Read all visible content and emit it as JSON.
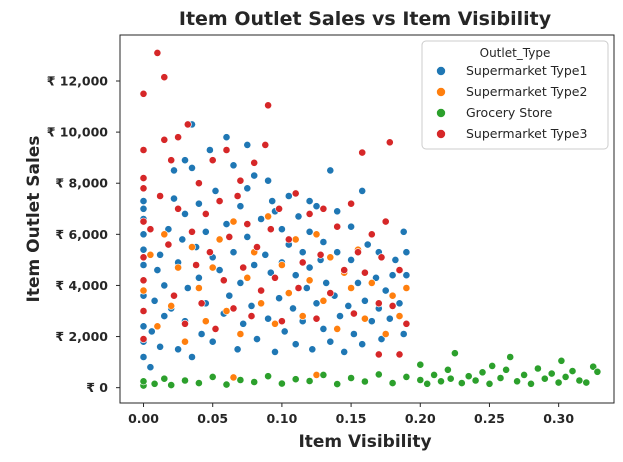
{
  "chart_data": {
    "type": "scatter",
    "title": "Item Outlet Sales vs Item Visibility",
    "xlabel": "Item Visibility",
    "ylabel": "Item Outlet Sales",
    "xlim": [
      -0.017,
      0.34
    ],
    "ylim": [
      -600,
      13800
    ],
    "x_ticks": [
      0.0,
      0.05,
      0.1,
      0.15,
      0.2,
      0.25,
      0.3
    ],
    "x_tick_labels": [
      "0.00",
      "0.05",
      "0.10",
      "0.15",
      "0.20",
      "0.25",
      "0.30"
    ],
    "y_ticks": [
      0,
      2000,
      4000,
      6000,
      8000,
      10000,
      12000
    ],
    "y_tick_labels": [
      "₹ 0",
      "₹ 2,000",
      "₹ 4,000",
      "₹ 6,000",
      "₹ 8,000",
      "₹ 10,000",
      "₹ 12,000"
    ],
    "grid": false,
    "legend": {
      "title": "Outlet_Type",
      "position": "top-right"
    },
    "series": [
      {
        "name": "Supermarket Type1",
        "color": "#1f77b4",
        "points": [
          [
            0.0,
            1200
          ],
          [
            0.0,
            1800
          ],
          [
            0.0,
            2400
          ],
          [
            0.0,
            3000
          ],
          [
            0.0,
            3600
          ],
          [
            0.0,
            4200
          ],
          [
            0.0,
            4800
          ],
          [
            0.0,
            5400
          ],
          [
            0.0,
            6000
          ],
          [
            0.0,
            6600
          ],
          [
            0.0,
            7000
          ],
          [
            0.0,
            7300
          ],
          [
            0.005,
            800
          ],
          [
            0.006,
            2200
          ],
          [
            0.008,
            3400
          ],
          [
            0.01,
            4600
          ],
          [
            0.012,
            5200
          ],
          [
            0.012,
            1600
          ],
          [
            0.015,
            2800
          ],
          [
            0.015,
            4000
          ],
          [
            0.018,
            6200
          ],
          [
            0.02,
            3100
          ],
          [
            0.022,
            7400
          ],
          [
            0.022,
            8500
          ],
          [
            0.025,
            1500
          ],
          [
            0.025,
            4900
          ],
          [
            0.028,
            5800
          ],
          [
            0.03,
            2600
          ],
          [
            0.03,
            6800
          ],
          [
            0.032,
            3900
          ],
          [
            0.035,
            8600
          ],
          [
            0.035,
            1200
          ],
          [
            0.038,
            5500
          ],
          [
            0.04,
            4300
          ],
          [
            0.04,
            7200
          ],
          [
            0.042,
            2100
          ],
          [
            0.045,
            6100
          ],
          [
            0.045,
            3300
          ],
          [
            0.048,
            9300
          ],
          [
            0.05,
            5100
          ],
          [
            0.05,
            1800
          ],
          [
            0.052,
            7700
          ],
          [
            0.055,
            4600
          ],
          [
            0.058,
            2900
          ],
          [
            0.06,
            9800
          ],
          [
            0.06,
            6400
          ],
          [
            0.062,
            3600
          ],
          [
            0.065,
            5300
          ],
          [
            0.068,
            1500
          ],
          [
            0.07,
            7100
          ],
          [
            0.07,
            4100
          ],
          [
            0.072,
            2500
          ],
          [
            0.075,
            9500
          ],
          [
            0.075,
            5900
          ],
          [
            0.078,
            3200
          ],
          [
            0.08,
            8300
          ],
          [
            0.08,
            4800
          ],
          [
            0.082,
            1900
          ],
          [
            0.085,
            6600
          ],
          [
            0.085,
            3800
          ],
          [
            0.088,
            5200
          ],
          [
            0.09,
            8100
          ],
          [
            0.09,
            2700
          ],
          [
            0.092,
            4500
          ],
          [
            0.095,
            6900
          ],
          [
            0.095,
            1400
          ],
          [
            0.098,
            3500
          ],
          [
            0.1,
            6200
          ],
          [
            0.1,
            4900
          ],
          [
            0.102,
            2200
          ],
          [
            0.105,
            5600
          ],
          [
            0.105,
            7500
          ],
          [
            0.108,
            3100
          ],
          [
            0.11,
            4400
          ],
          [
            0.11,
            1700
          ],
          [
            0.112,
            6700
          ],
          [
            0.115,
            5300
          ],
          [
            0.115,
            2600
          ],
          [
            0.118,
            3900
          ],
          [
            0.12,
            6100
          ],
          [
            0.12,
            4700
          ],
          [
            0.122,
            1500
          ],
          [
            0.125,
            3300
          ],
          [
            0.125,
            7100
          ],
          [
            0.128,
            5000
          ],
          [
            0.13,
            2300
          ],
          [
            0.13,
            5700
          ],
          [
            0.132,
            4100
          ],
          [
            0.135,
            8500
          ],
          [
            0.135,
            1800
          ],
          [
            0.138,
            3600
          ],
          [
            0.14,
            5300
          ],
          [
            0.14,
            6900
          ],
          [
            0.142,
            2800
          ],
          [
            0.145,
            4500
          ],
          [
            0.145,
            1400
          ],
          [
            0.148,
            3200
          ],
          [
            0.15,
            5000
          ],
          [
            0.15,
            6300
          ],
          [
            0.152,
            2100
          ],
          [
            0.155,
            4100
          ],
          [
            0.158,
            7700
          ],
          [
            0.158,
            1700
          ],
          [
            0.16,
            3400
          ],
          [
            0.162,
            5600
          ],
          [
            0.165,
            2600
          ],
          [
            0.168,
            4300
          ],
          [
            0.17,
            3100
          ],
          [
            0.17,
            5300
          ],
          [
            0.172,
            1900
          ],
          [
            0.175,
            3800
          ],
          [
            0.178,
            2700
          ],
          [
            0.18,
            4400
          ],
          [
            0.182,
            5000
          ],
          [
            0.185,
            3300
          ],
          [
            0.188,
            6100
          ],
          [
            0.188,
            2100
          ],
          [
            0.19,
            4400
          ],
          [
            0.19,
            5300
          ],
          [
            0.19,
            2500
          ],
          [
            0.03,
            8900
          ],
          [
            0.035,
            10300
          ],
          [
            0.065,
            8700
          ],
          [
            0.075,
            7800
          ],
          [
            0.093,
            7300
          ],
          [
            0.12,
            7300
          ],
          [
            0.14,
            5300
          ],
          [
            0.17,
            3100
          ]
        ]
      },
      {
        "name": "Supermarket Type2",
        "color": "#ff7f0e",
        "points": [
          [
            0.0,
            3800
          ],
          [
            0.005,
            5200
          ],
          [
            0.01,
            2400
          ],
          [
            0.015,
            6000
          ],
          [
            0.02,
            3200
          ],
          [
            0.025,
            4700
          ],
          [
            0.03,
            1800
          ],
          [
            0.035,
            5500
          ],
          [
            0.04,
            3900
          ],
          [
            0.045,
            2600
          ],
          [
            0.05,
            4700
          ],
          [
            0.055,
            5800
          ],
          [
            0.06,
            3000
          ],
          [
            0.065,
            6500
          ],
          [
            0.07,
            2100
          ],
          [
            0.075,
            4300
          ],
          [
            0.08,
            5300
          ],
          [
            0.085,
            3300
          ],
          [
            0.09,
            6700
          ],
          [
            0.095,
            2500
          ],
          [
            0.1,
            4800
          ],
          [
            0.105,
            3700
          ],
          [
            0.11,
            5800
          ],
          [
            0.115,
            2800
          ],
          [
            0.12,
            4200
          ],
          [
            0.125,
            6000
          ],
          [
            0.13,
            3400
          ],
          [
            0.135,
            5100
          ],
          [
            0.14,
            2300
          ],
          [
            0.145,
            4500
          ],
          [
            0.15,
            3900
          ],
          [
            0.155,
            5400
          ],
          [
            0.16,
            2700
          ],
          [
            0.165,
            4100
          ],
          [
            0.17,
            3300
          ],
          [
            0.175,
            2100
          ],
          [
            0.18,
            3600
          ],
          [
            0.185,
            2800
          ],
          [
            0.19,
            3900
          ],
          [
            0.065,
            400
          ],
          [
            0.125,
            500
          ]
        ]
      },
      {
        "name": "Grocery Store",
        "color": "#2ca02c",
        "points": [
          [
            0.0,
            80
          ],
          [
            0.0,
            250
          ],
          [
            0.008,
            150
          ],
          [
            0.015,
            350
          ],
          [
            0.02,
            100
          ],
          [
            0.03,
            280
          ],
          [
            0.04,
            180
          ],
          [
            0.05,
            420
          ],
          [
            0.06,
            120
          ],
          [
            0.07,
            300
          ],
          [
            0.08,
            220
          ],
          [
            0.09,
            450
          ],
          [
            0.1,
            160
          ],
          [
            0.11,
            330
          ],
          [
            0.12,
            260
          ],
          [
            0.13,
            500
          ],
          [
            0.14,
            140
          ],
          [
            0.15,
            380
          ],
          [
            0.16,
            240
          ],
          [
            0.17,
            520
          ],
          [
            0.18,
            180
          ],
          [
            0.19,
            420
          ],
          [
            0.2,
            300
          ],
          [
            0.2,
            900
          ],
          [
            0.205,
            150
          ],
          [
            0.21,
            500
          ],
          [
            0.215,
            250
          ],
          [
            0.22,
            700
          ],
          [
            0.222,
            350
          ],
          [
            0.225,
            1350
          ],
          [
            0.23,
            180
          ],
          [
            0.235,
            450
          ],
          [
            0.24,
            280
          ],
          [
            0.245,
            600
          ],
          [
            0.25,
            150
          ],
          [
            0.252,
            850
          ],
          [
            0.258,
            380
          ],
          [
            0.262,
            700
          ],
          [
            0.265,
            1200
          ],
          [
            0.27,
            250
          ],
          [
            0.275,
            500
          ],
          [
            0.28,
            150
          ],
          [
            0.285,
            750
          ],
          [
            0.29,
            350
          ],
          [
            0.295,
            550
          ],
          [
            0.3,
            200
          ],
          [
            0.302,
            1050
          ],
          [
            0.305,
            420
          ],
          [
            0.31,
            650
          ],
          [
            0.315,
            280
          ],
          [
            0.32,
            200
          ],
          [
            0.325,
            820
          ],
          [
            0.328,
            620
          ]
        ]
      },
      {
        "name": "Supermarket Type3",
        "color": "#d62728",
        "points": [
          [
            0.0,
            11500
          ],
          [
            0.0,
            9300
          ],
          [
            0.0,
            8200
          ],
          [
            0.0,
            7800
          ],
          [
            0.0,
            6500
          ],
          [
            0.0,
            5100
          ],
          [
            0.0,
            4200
          ],
          [
            0.0,
            3000
          ],
          [
            0.0,
            1900
          ],
          [
            0.005,
            6200
          ],
          [
            0.01,
            13100
          ],
          [
            0.012,
            7500
          ],
          [
            0.015,
            12150
          ],
          [
            0.015,
            9700
          ],
          [
            0.018,
            5600
          ],
          [
            0.02,
            8900
          ],
          [
            0.022,
            3600
          ],
          [
            0.025,
            7000
          ],
          [
            0.025,
            9800
          ],
          [
            0.03,
            2500
          ],
          [
            0.032,
            10300
          ],
          [
            0.035,
            6100
          ],
          [
            0.038,
            4800
          ],
          [
            0.04,
            8000
          ],
          [
            0.042,
            3300
          ],
          [
            0.045,
            6800
          ],
          [
            0.048,
            5300
          ],
          [
            0.05,
            8900
          ],
          [
            0.052,
            2300
          ],
          [
            0.055,
            7300
          ],
          [
            0.058,
            4200
          ],
          [
            0.06,
            9300
          ],
          [
            0.062,
            5900
          ],
          [
            0.065,
            3100
          ],
          [
            0.068,
            7500
          ],
          [
            0.07,
            8100
          ],
          [
            0.072,
            4700
          ],
          [
            0.075,
            6400
          ],
          [
            0.078,
            2800
          ],
          [
            0.08,
            8800
          ],
          [
            0.082,
            5500
          ],
          [
            0.085,
            3800
          ],
          [
            0.088,
            9500
          ],
          [
            0.09,
            11050
          ],
          [
            0.092,
            6200
          ],
          [
            0.095,
            4300
          ],
          [
            0.098,
            7000
          ],
          [
            0.1,
            2600
          ],
          [
            0.105,
            5800
          ],
          [
            0.11,
            7600
          ],
          [
            0.112,
            3900
          ],
          [
            0.115,
            4900
          ],
          [
            0.12,
            6800
          ],
          [
            0.125,
            2700
          ],
          [
            0.128,
            5200
          ],
          [
            0.13,
            7000
          ],
          [
            0.135,
            3700
          ],
          [
            0.14,
            6300
          ],
          [
            0.145,
            4600
          ],
          [
            0.15,
            7200
          ],
          [
            0.152,
            2900
          ],
          [
            0.155,
            5300
          ],
          [
            0.158,
            9200
          ],
          [
            0.16,
            4500
          ],
          [
            0.165,
            6000
          ],
          [
            0.17,
            3300
          ],
          [
            0.172,
            5100
          ],
          [
            0.175,
            6500
          ],
          [
            0.178,
            9600
          ],
          [
            0.18,
            3200
          ],
          [
            0.185,
            4600
          ],
          [
            0.19,
            2500
          ],
          [
            0.185,
            1300
          ],
          [
            0.17,
            1300
          ]
        ]
      }
    ]
  }
}
